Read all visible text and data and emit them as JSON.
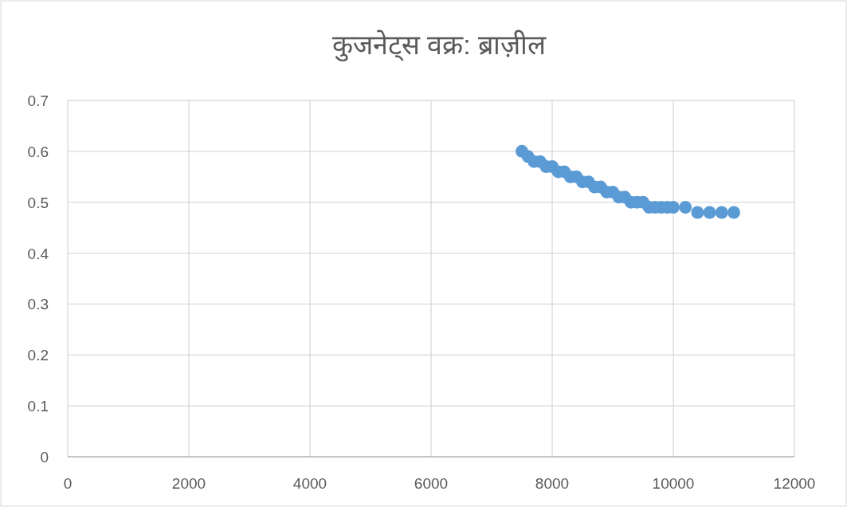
{
  "chart_data": {
    "type": "scatter",
    "title": "कुजनेट्स वक्र: ब्राज़ील",
    "x": [
      7500,
      7600,
      7700,
      7800,
      7900,
      8000,
      8100,
      8200,
      8300,
      8400,
      8500,
      8600,
      8700,
      8800,
      8900,
      9000,
      9100,
      9200,
      9300,
      9400,
      9500,
      9600,
      9700,
      9800,
      9900,
      10000,
      10200,
      10400,
      10600,
      10800,
      11000
    ],
    "series": [
      {
        "color": "#5b9bd5",
        "values": [
          0.6,
          0.59,
          0.58,
          0.58,
          0.57,
          0.57,
          0.56,
          0.56,
          0.55,
          0.55,
          0.54,
          0.54,
          0.53,
          0.53,
          0.52,
          0.52,
          0.51,
          0.51,
          0.5,
          0.5,
          0.5,
          0.49,
          0.49,
          0.49,
          0.49,
          0.49,
          0.49,
          0.48,
          0.48,
          0.48,
          0.48
        ]
      }
    ],
    "xlim": [
      0,
      12000
    ],
    "xticks": [
      0,
      2000,
      4000,
      6000,
      8000,
      10000,
      12000
    ],
    "ylim": [
      0,
      0.7
    ],
    "yticks": [
      0,
      0.1,
      0.2,
      0.3,
      0.4,
      0.5,
      0.6,
      0.7
    ],
    "grid": true,
    "marker": "circle"
  }
}
